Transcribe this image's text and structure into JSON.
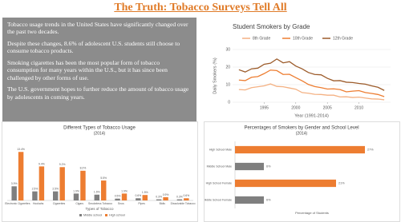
{
  "title": "The Truth: Tobacco Surveys Tell All",
  "paragraphs": [
    "Tobacco usage trends in the United States have significantly changed over the past two decades.",
    "Despite these changes, 8.6% of adolescent U.S. students still choose to consume tobacco products.",
    "Smoking cigarettes has been the most popular form of tobacco consumption for many years within the U.S., but it has since been challenged by other forms of use.",
    "The U.S. government hopes to further reduce the amount of tobacco usage by adolescents in coming years."
  ],
  "chart_data": [
    {
      "type": "line",
      "title": "Student Smokers by Grade",
      "x_label": "Year (1991-2014)",
      "y_label": "Daily Smokers (%)",
      "x": [
        1991,
        1992,
        1993,
        1994,
        1995,
        1996,
        1997,
        1998,
        1999,
        2000,
        2001,
        2002,
        2003,
        2004,
        2005,
        2006,
        2007,
        2008,
        2009,
        2010,
        2011,
        2012,
        2013,
        2014
      ],
      "xlim": [
        1990,
        2015
      ],
      "xticks": [
        1995,
        2000,
        2005,
        2010
      ],
      "ylim": [
        0,
        30
      ],
      "yticks": [
        0,
        10,
        20,
        30
      ],
      "series": [
        {
          "name": "8th Grade",
          "color": "#f4b183",
          "values": [
            7.2,
            7.0,
            8.3,
            8.8,
            9.3,
            10.4,
            9.0,
            8.8,
            8.1,
            7.4,
            5.5,
            5.1,
            4.5,
            4.4,
            4.0,
            4.0,
            3.0,
            3.1,
            2.7,
            2.9,
            2.4,
            1.9,
            1.8,
            1.4
          ]
        },
        {
          "name": "10th Grade",
          "color": "#ed7d31",
          "values": [
            12.6,
            12.3,
            14.2,
            14.6,
            16.3,
            18.3,
            18.0,
            15.8,
            15.9,
            14.0,
            12.2,
            10.1,
            8.9,
            8.3,
            7.5,
            7.6,
            7.2,
            5.9,
            6.3,
            6.6,
            5.5,
            5.0,
            4.4,
            3.2
          ]
        },
        {
          "name": "12th Grade",
          "color": "#9c5b2a",
          "values": [
            18.5,
            17.2,
            19.0,
            19.4,
            21.6,
            22.2,
            24.6,
            22.4,
            23.1,
            20.6,
            19.0,
            16.9,
            15.8,
            15.6,
            13.6,
            12.2,
            12.3,
            11.4,
            11.2,
            10.7,
            10.3,
            9.3,
            8.5,
            6.7
          ]
        }
      ]
    },
    {
      "type": "bar",
      "title": "Different Types of Tobacco Usage",
      "subtitle": "(2014)",
      "x_label": "Types of Tobacco",
      "categories": [
        "Electronic Cigarettes",
        "Hookahs",
        "Cigarettes",
        "Cigars",
        "Smokeless Tobacco",
        "Snus",
        "Pipes",
        "Bidis",
        "Dissolvable Tobacco"
      ],
      "ylim": [
        0,
        15
      ],
      "series": [
        {
          "name": "Middle school",
          "color": "#7f7f7f",
          "values": [
            3.9,
            2.5,
            2.5,
            1.9,
            1.6,
            0.5,
            0.6,
            0.3,
            0.3
          ],
          "value_labels": [
            "3.9%",
            "2.5%",
            "2.5%",
            "1.9%",
            "1.6%",
            "0.5%",
            "0.6%",
            "0.3%",
            "0.3%"
          ]
        },
        {
          "name": "High school",
          "color": "#ed7d31",
          "values": [
            13.4,
            9.4,
            9.2,
            8.2,
            5.5,
            1.9,
            1.5,
            0.9,
            0.6
          ],
          "value_labels": [
            "13.4%",
            "9.4%",
            "9.2%",
            "8.2%",
            "5.5%",
            "1.9%",
            "1.5%",
            "0.9%",
            "0.6%"
          ]
        }
      ]
    },
    {
      "type": "hbar",
      "title": "Percentages of Smokers by Gender and School Level",
      "subtitle": "(2014)",
      "x_label": "Percentage of Students",
      "categories": [
        "High School Male",
        "Middle School Male",
        "High School Female",
        "Middle School Female"
      ],
      "xlim": [
        0,
        32
      ],
      "colors": [
        "#ed7d31",
        "#7f7f7f",
        "#ed7d31",
        "#7f7f7f"
      ],
      "values": [
        27,
        6,
        21,
        6
      ],
      "value_labels": [
        "27%",
        "6%",
        "21%",
        "6%"
      ]
    }
  ]
}
